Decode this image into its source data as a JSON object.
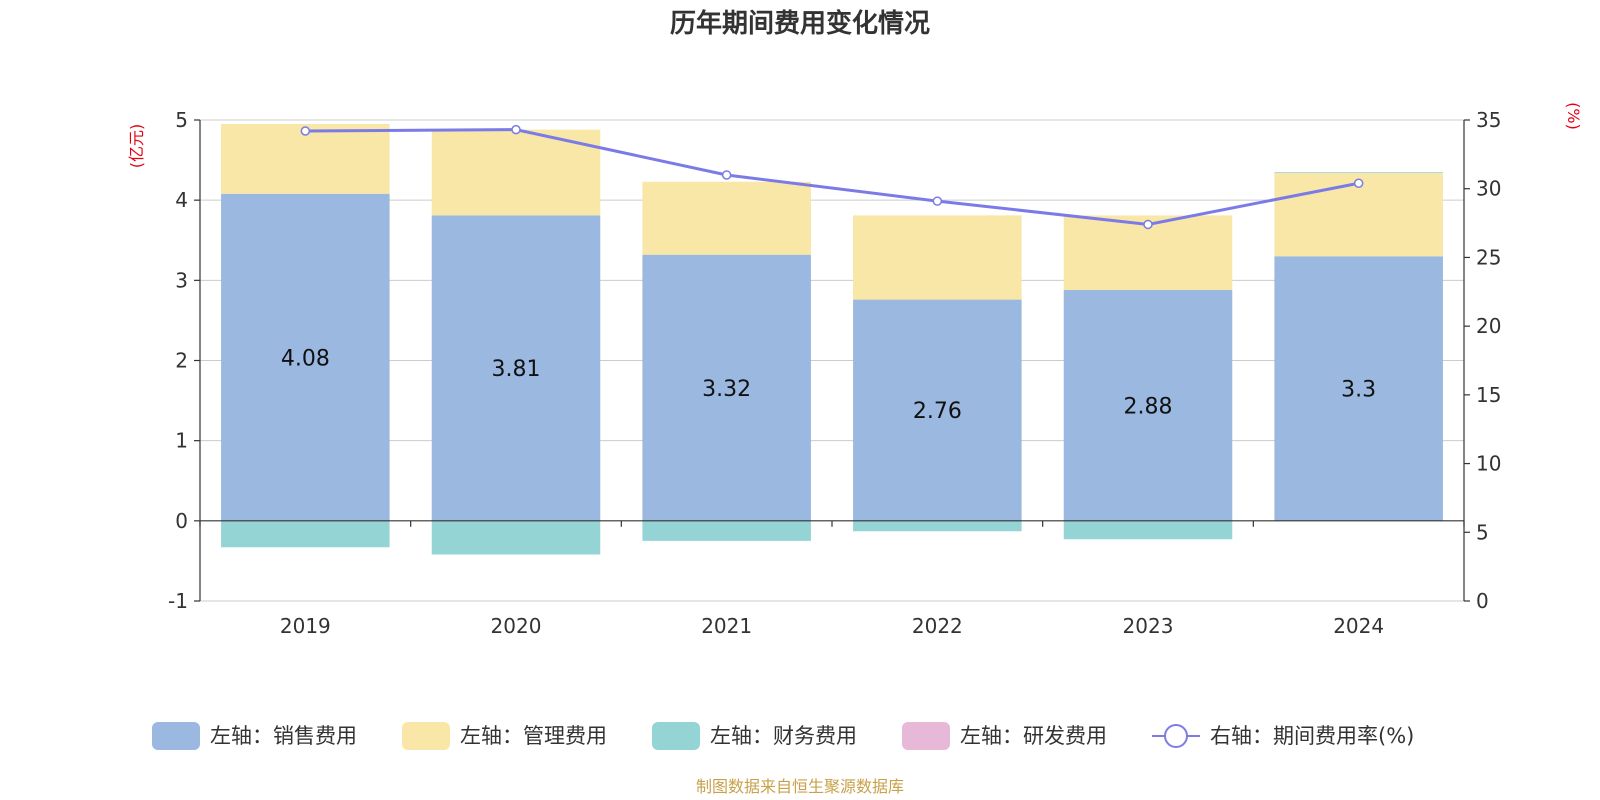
{
  "chart_data": {
    "type": "bar",
    "title": "历年期间费用变化情况",
    "categories": [
      "2019",
      "2020",
      "2021",
      "2022",
      "2023",
      "2024"
    ],
    "y_left": {
      "unit": "(亿元)",
      "min": -1,
      "max": 5,
      "ticks": [
        -1,
        0,
        1,
        2,
        3,
        4,
        5
      ]
    },
    "y_right": {
      "unit": "(%)",
      "min": 0,
      "max": 35,
      "ticks": [
        0,
        5,
        10,
        15,
        20,
        25,
        30,
        35
      ]
    },
    "grid": true,
    "legend_position": "bottom",
    "series": [
      {
        "name": "左轴：销售费用",
        "type": "bar",
        "axis": "left",
        "color": "#9bb8e1",
        "values": [
          4.08,
          3.81,
          3.32,
          2.76,
          2.88,
          3.3
        ],
        "labels": [
          "4.08",
          "3.81",
          "3.32",
          "2.76",
          "2.88",
          "3.3"
        ]
      },
      {
        "name": "左轴：管理费用",
        "type": "bar",
        "axis": "left",
        "color": "#f8e7a7",
        "values": [
          0.87,
          1.07,
          0.91,
          1.05,
          0.93,
          1.04
        ]
      },
      {
        "name": "左轴：财务费用",
        "type": "bar",
        "axis": "left",
        "color": "#95d4d4",
        "values": [
          -0.33,
          -0.42,
          -0.25,
          -0.13,
          -0.23,
          0.01
        ]
      },
      {
        "name": "左轴：研发费用",
        "type": "bar",
        "axis": "left",
        "color": "#e8b8d8",
        "values": [
          0,
          0,
          0,
          0,
          0,
          0
        ]
      },
      {
        "name": "右轴：期间费用率(%)",
        "type": "line",
        "axis": "right",
        "color": "#7b7be8",
        "values": [
          34.2,
          34.3,
          31.0,
          29.1,
          27.4,
          30.4
        ]
      }
    ],
    "source": "制图数据来自恒生聚源数据库"
  }
}
